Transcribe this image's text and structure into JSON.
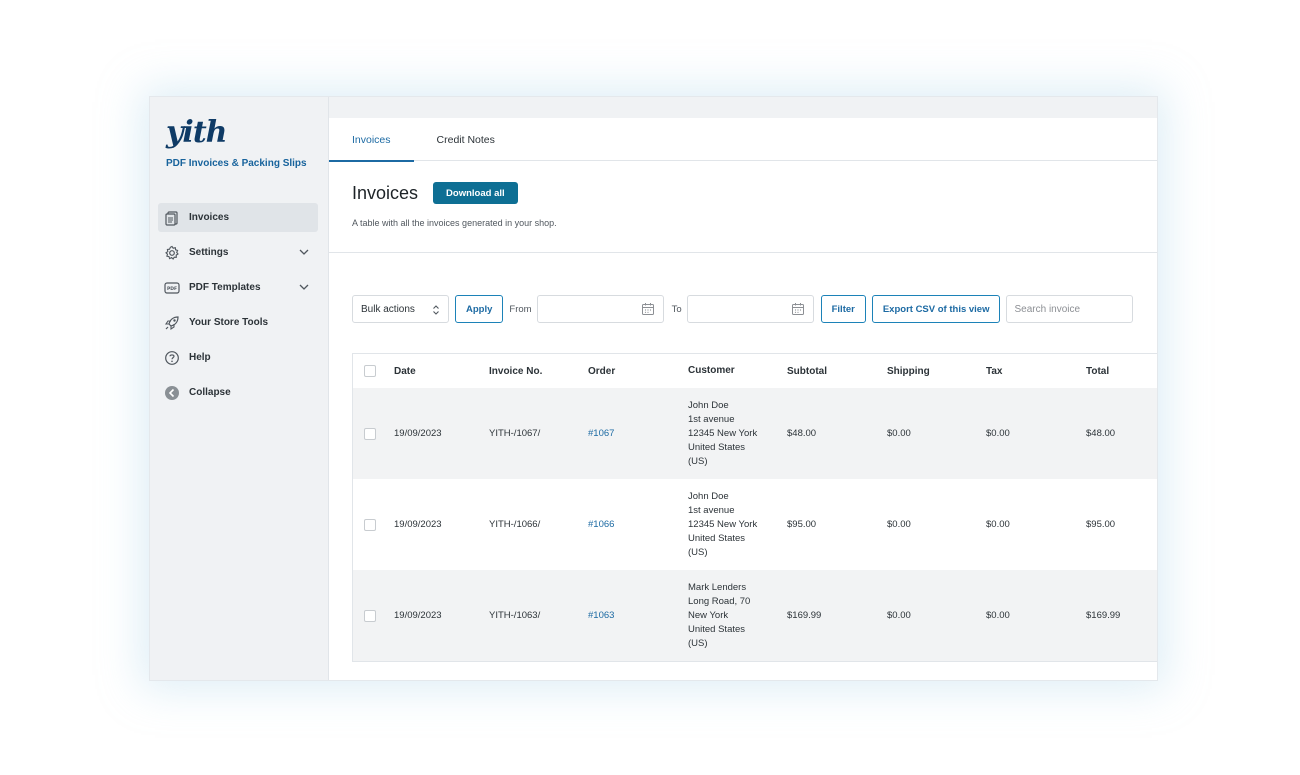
{
  "sidebar": {
    "logo": "yith",
    "plugin_name": "PDF Invoices & Packing Slips",
    "items": [
      {
        "label": "Invoices",
        "icon": "invoice-icon",
        "active": true
      },
      {
        "label": "Settings",
        "icon": "gear-icon",
        "expandable": true
      },
      {
        "label": "PDF Templates",
        "icon": "pdf-icon",
        "expandable": true
      },
      {
        "label": "Your Store Tools",
        "icon": "rocket-icon"
      },
      {
        "label": "Help",
        "icon": "help-icon"
      },
      {
        "label": "Collapse",
        "icon": "collapse-icon"
      }
    ]
  },
  "tabs": [
    {
      "label": "Invoices",
      "active": true
    },
    {
      "label": "Credit Notes",
      "active": false
    }
  ],
  "page": {
    "title": "Invoices",
    "download_all": "Download all",
    "description": "A table with all the invoices generated in your shop."
  },
  "filters": {
    "bulk_actions": "Bulk actions",
    "apply": "Apply",
    "from_label": "From",
    "to_label": "To",
    "filter": "Filter",
    "export": "Export CSV of this view",
    "search_placeholder": "Search invoice"
  },
  "table": {
    "headers": [
      "Date",
      "Invoice No.",
      "Order",
      "Customer",
      "Subtotal",
      "Shipping",
      "Tax",
      "Total"
    ],
    "rows": [
      {
        "date": "19/09/2023",
        "invoice_no": "YITH-/1067/",
        "order": "#1067",
        "customer": [
          "John Doe",
          "1st avenue",
          "12345 New York",
          "United States",
          "(US)"
        ],
        "subtotal": "$48.00",
        "shipping": "$0.00",
        "tax": "$0.00",
        "total": "$48.00"
      },
      {
        "date": "19/09/2023",
        "invoice_no": "YITH-/1066/",
        "order": "#1066",
        "customer": [
          "John Doe",
          "1st avenue",
          "12345 New York",
          "United States",
          "(US)"
        ],
        "subtotal": "$95.00",
        "shipping": "$0.00",
        "tax": "$0.00",
        "total": "$95.00"
      },
      {
        "date": "19/09/2023",
        "invoice_no": "YITH-/1063/",
        "order": "#1063",
        "customer": [
          "Mark Lenders",
          "Long Road, 70",
          "New York",
          "United States",
          "(US)"
        ],
        "subtotal": "$169.99",
        "shipping": "$0.00",
        "tax": "$0.00",
        "total": "$169.99"
      }
    ]
  },
  "colors": {
    "accent": "#0e6f94",
    "link": "#1c6aa3",
    "brand_dark": "#0f3b66",
    "brand_green": "#6fae3c"
  }
}
